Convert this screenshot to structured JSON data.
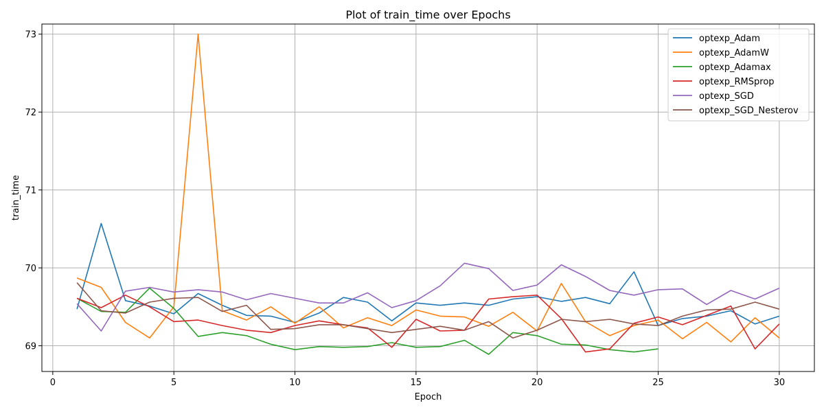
{
  "colors": {
    "series": [
      "#1f77b4",
      "#ff7f0e",
      "#2ca02c",
      "#d62728",
      "#9467bd",
      "#8c564b"
    ],
    "grid": "#b0b0b0",
    "axis": "#000000"
  },
  "chart_data": {
    "type": "line",
    "title": "Plot of train_time over Epochs",
    "xlabel": "Epoch",
    "ylabel": "train_time",
    "xlim": [
      -0.45,
      31.45
    ],
    "ylim": [
      68.67,
      73.13
    ],
    "xticks": [
      0,
      5,
      10,
      15,
      20,
      25,
      30
    ],
    "yticks": [
      69,
      70,
      71,
      72,
      73
    ],
    "grid": true,
    "legend_position": "top-right",
    "series": [
      {
        "name": "optexp_Adam",
        "x": [
          1,
          2,
          3,
          4,
          5,
          6,
          7,
          8,
          9,
          10,
          11,
          12,
          13,
          14,
          15,
          16,
          17,
          18,
          19,
          20,
          21,
          22,
          23,
          24,
          25,
          26,
          27,
          28,
          29,
          30
        ],
        "values": [
          69.47,
          70.57,
          69.58,
          69.51,
          69.41,
          69.67,
          69.52,
          69.39,
          69.38,
          69.3,
          69.42,
          69.62,
          69.56,
          69.32,
          69.55,
          69.52,
          69.55,
          69.52,
          69.6,
          69.63,
          69.57,
          69.62,
          69.54,
          69.95,
          69.26,
          69.35,
          69.38,
          69.45,
          69.28,
          69.38
        ]
      },
      {
        "name": "optexp_AdamW",
        "x": [
          1,
          2,
          3,
          4,
          5,
          6,
          7,
          8,
          9,
          10,
          11,
          12,
          13,
          14,
          15,
          16,
          17,
          18,
          19,
          20,
          21,
          22,
          23,
          24,
          25,
          26,
          27,
          28,
          29,
          30
        ],
        "values": [
          69.87,
          69.75,
          69.3,
          69.1,
          69.5,
          73.0,
          69.45,
          69.33,
          69.5,
          69.29,
          69.5,
          69.23,
          69.36,
          69.26,
          69.46,
          69.38,
          69.37,
          69.25,
          69.43,
          69.19,
          69.8,
          69.31,
          69.13,
          69.26,
          69.33,
          69.09,
          69.3,
          69.05,
          69.36,
          69.1
        ]
      },
      {
        "name": "optexp_Adamax",
        "x": [
          1,
          2,
          3,
          4,
          5,
          6,
          7,
          8,
          9,
          10,
          11,
          12,
          13,
          14,
          15,
          16,
          17,
          18,
          19,
          20,
          21,
          22,
          23,
          24,
          25
        ],
        "values": [
          69.61,
          69.44,
          69.43,
          69.74,
          69.48,
          69.12,
          69.17,
          69.13,
          69.02,
          68.95,
          68.99,
          68.98,
          68.99,
          69.04,
          68.98,
          68.99,
          69.07,
          68.89,
          69.17,
          69.13,
          69.02,
          69.01,
          68.95,
          68.92,
          68.96
        ]
      },
      {
        "name": "optexp_RMSprop",
        "x": [
          1,
          2,
          3,
          4,
          5,
          6,
          7,
          8,
          9,
          10,
          11,
          12,
          13,
          14,
          15,
          16,
          17,
          18,
          19,
          20,
          21,
          22,
          23,
          24,
          25,
          26,
          27,
          28,
          29,
          30
        ],
        "values": [
          69.61,
          69.49,
          69.65,
          69.5,
          69.31,
          69.33,
          69.26,
          69.2,
          69.17,
          69.26,
          69.32,
          69.27,
          69.23,
          68.98,
          69.34,
          69.19,
          69.2,
          69.6,
          69.63,
          69.65,
          69.35,
          68.92,
          68.96,
          69.29,
          69.37,
          69.27,
          69.39,
          69.51,
          68.96,
          69.28
        ]
      },
      {
        "name": "optexp_SGD",
        "x": [
          1,
          2,
          3,
          4,
          5,
          6,
          7,
          8,
          9,
          10,
          11,
          12,
          13,
          14,
          15,
          16,
          17,
          18,
          19,
          20,
          21,
          22,
          23,
          24,
          25,
          26,
          27,
          28,
          29,
          30
        ],
        "values": [
          69.54,
          69.19,
          69.7,
          69.75,
          69.69,
          69.72,
          69.69,
          69.59,
          69.67,
          69.61,
          69.55,
          69.55,
          69.68,
          69.49,
          69.58,
          69.77,
          70.06,
          69.99,
          69.71,
          69.78,
          70.04,
          69.89,
          69.71,
          69.65,
          69.72,
          69.73,
          69.53,
          69.71,
          69.6,
          69.74
        ]
      },
      {
        "name": "optexp_SGD_Nesterov",
        "x": [
          1,
          2,
          3,
          4,
          5,
          6,
          7,
          8,
          9,
          10,
          11,
          12,
          13,
          14,
          15,
          16,
          17,
          18,
          19,
          20,
          21,
          22,
          23,
          24,
          25,
          26,
          27,
          28,
          29,
          30
        ],
        "values": [
          69.81,
          69.45,
          69.42,
          69.56,
          69.61,
          69.62,
          69.44,
          69.52,
          69.21,
          69.22,
          69.27,
          69.27,
          69.22,
          69.17,
          69.21,
          69.25,
          69.2,
          69.31,
          69.1,
          69.2,
          69.34,
          69.31,
          69.34,
          69.28,
          69.26,
          69.38,
          69.46,
          69.47,
          69.56,
          69.47
        ]
      }
    ]
  }
}
